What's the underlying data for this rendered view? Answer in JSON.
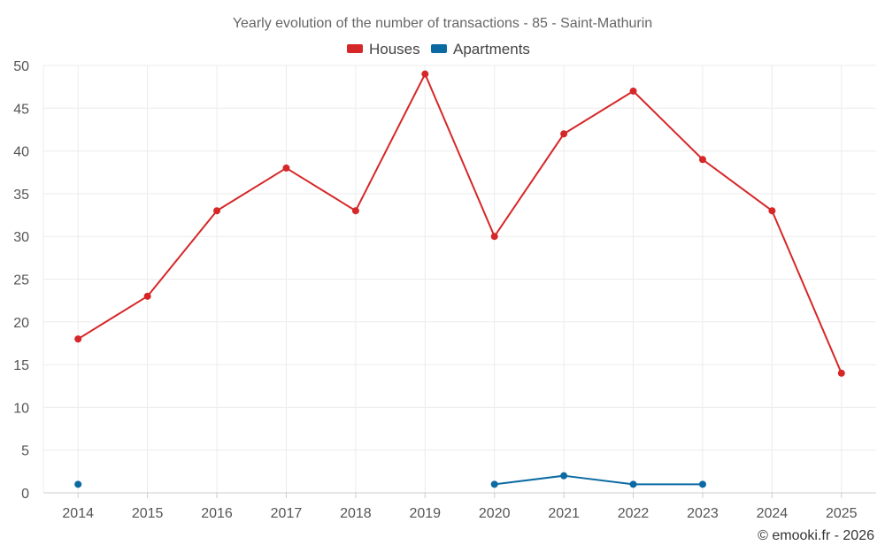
{
  "chart_data": {
    "type": "line",
    "title": "Yearly evolution of the number of transactions - 85 - Saint-Mathurin",
    "categories": [
      "2014",
      "2015",
      "2016",
      "2017",
      "2018",
      "2019",
      "2020",
      "2021",
      "2022",
      "2023",
      "2024",
      "2025"
    ],
    "series": [
      {
        "name": "Houses",
        "color": "#d62728",
        "values": [
          18,
          23,
          33,
          38,
          33,
          49,
          30,
          42,
          47,
          39,
          33,
          14
        ]
      },
      {
        "name": "Apartments",
        "color": "#0b6aa2",
        "values": [
          1,
          null,
          null,
          null,
          null,
          null,
          1,
          2,
          1,
          1,
          null,
          null
        ]
      }
    ],
    "ylim": [
      0,
      50
    ],
    "yticks": [
      "0",
      "5",
      "10",
      "15",
      "20",
      "25",
      "30",
      "35",
      "40",
      "45",
      "50"
    ],
    "grid": true,
    "legend_position": "top-center",
    "credit": "© emooki.fr - 2026"
  }
}
